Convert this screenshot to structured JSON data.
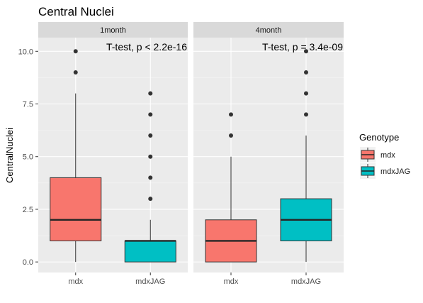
{
  "chart_data": {
    "type": "box",
    "title": "Central Nuclei",
    "ylabel": "CentralNuclei",
    "xlabel": "",
    "ylim": [
      -0.5,
      10.65
    ],
    "yticks": [
      0,
      2.5,
      5,
      7.5,
      10
    ],
    "ytick_labels": [
      "0.0",
      "2.5",
      "5.0",
      "7.5",
      "10.0"
    ],
    "categories": [
      "mdx",
      "mdxJAG"
    ],
    "legend": {
      "title": "Genotype",
      "position": "right",
      "entries": [
        {
          "label": "mdx",
          "color": "#F8766D"
        },
        {
          "label": "mdxJAG",
          "color": "#00BFC4"
        }
      ]
    },
    "grid": true,
    "facets": [
      {
        "strip": "1month",
        "annotation": "T-test, p < 2.2e-16",
        "boxes": [
          {
            "category": "mdx",
            "genotype": "mdx",
            "min": 0,
            "q1": 1,
            "median": 2,
            "q3": 4,
            "max": 8,
            "outliers": [
              9,
              10
            ]
          },
          {
            "category": "mdxJAG",
            "genotype": "mdxJAG",
            "min": 0,
            "q1": 0,
            "median": 1,
            "q3": 1,
            "max": 2,
            "outliers": [
              3,
              4,
              5,
              6,
              7,
              8
            ]
          }
        ]
      },
      {
        "strip": "4month",
        "annotation": "T-test, p = 3.4e-09",
        "boxes": [
          {
            "category": "mdx",
            "genotype": "mdx",
            "min": 0,
            "q1": 0,
            "median": 1,
            "q3": 2,
            "max": 5,
            "outliers": [
              6,
              7
            ]
          },
          {
            "category": "mdxJAG",
            "genotype": "mdxJAG",
            "min": 0,
            "q1": 1,
            "median": 2,
            "q3": 3,
            "max": 6,
            "outliers": [
              7,
              8,
              9,
              10
            ]
          }
        ]
      }
    ]
  }
}
